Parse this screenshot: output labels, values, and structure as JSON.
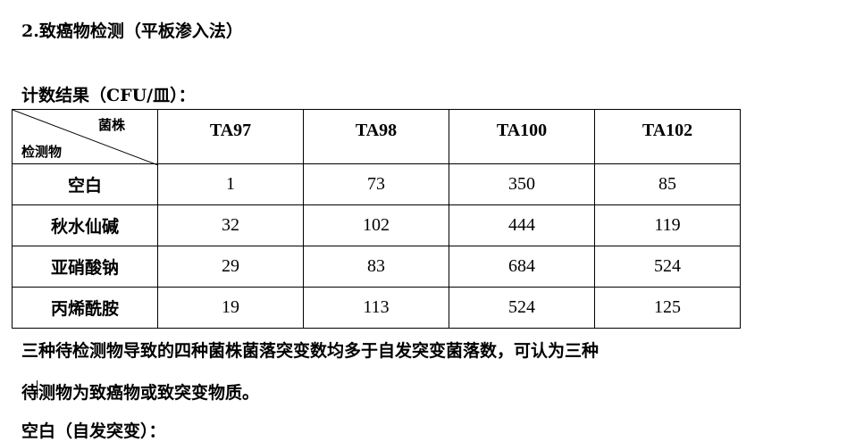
{
  "heading": "2.致癌物检测（平板渗入法）",
  "subheading": "计数结果（CFU/皿）：",
  "table": {
    "corner_top": "菌株",
    "corner_bottom": "检测物",
    "columns": [
      "TA97",
      "TA98",
      "TA100",
      "TA102"
    ],
    "rows": [
      {
        "label": "空白",
        "values": [
          "1",
          "73",
          "350",
          "85"
        ]
      },
      {
        "label": "秋水仙碱",
        "values": [
          "32",
          "102",
          "444",
          "119"
        ]
      },
      {
        "label": "亚硝酸钠",
        "values": [
          "29",
          "83",
          "684",
          "524"
        ]
      },
      {
        "label": "丙烯酰胺",
        "values": [
          "19",
          "113",
          "524",
          "125"
        ]
      }
    ]
  },
  "paragraph_line1": "三种待检测物导致的四种菌株菌落突变数均多于自发突变菌落数，可认为三种",
  "paragraph_line2": "待测物为致癌物或致突变物质。",
  "next_heading": "空白（自发突变）："
}
